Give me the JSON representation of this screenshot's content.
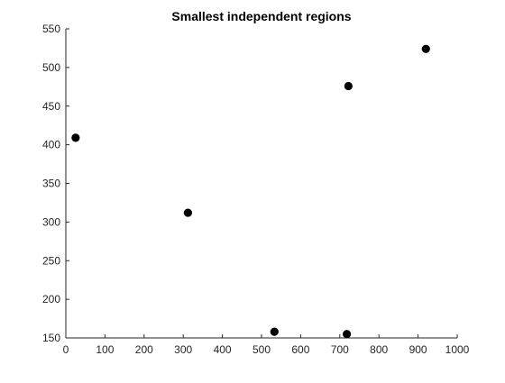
{
  "chart_data": {
    "type": "scatter",
    "title": "Smallest independent regions",
    "xlabel": "",
    "ylabel": "",
    "xlim": [
      0,
      1000
    ],
    "ylim": [
      150,
      550
    ],
    "xticks": [
      "0",
      "100",
      "200",
      "300",
      "400",
      "500",
      "600",
      "700",
      "800",
      "900",
      "1000"
    ],
    "yticks": [
      "150",
      "200",
      "250",
      "300",
      "350",
      "400",
      "450",
      "500",
      "550"
    ],
    "grid": false,
    "series": [
      {
        "color": "#000000",
        "points": [
          {
            "x": 25,
            "y": 409
          },
          {
            "x": 312,
            "y": 312
          },
          {
            "x": 533,
            "y": 158
          },
          {
            "x": 718,
            "y": 155
          },
          {
            "x": 722,
            "y": 476
          },
          {
            "x": 920,
            "y": 524
          }
        ]
      }
    ]
  }
}
